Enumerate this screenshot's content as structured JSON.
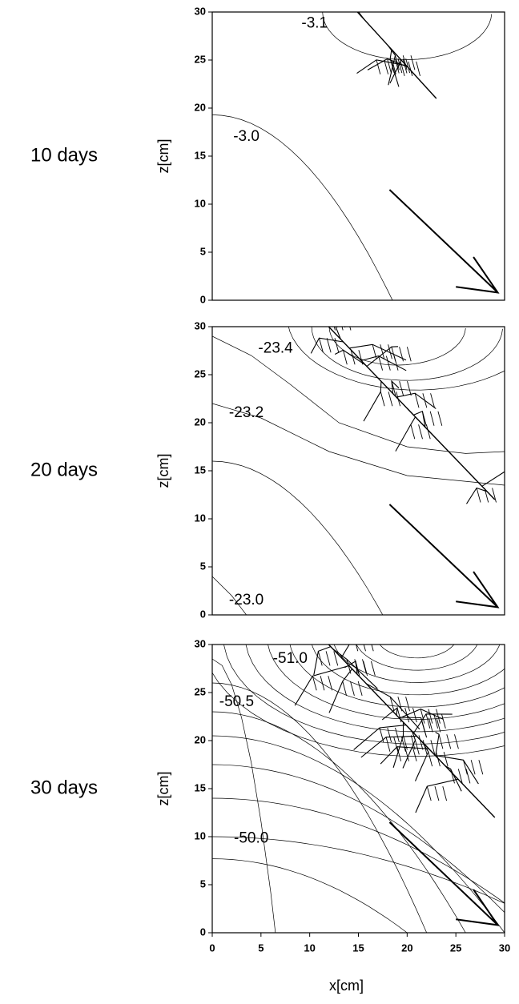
{
  "chart_data": [
    {
      "type": "contour",
      "title": "10 days",
      "ylabel": "z[cm]",
      "xlim": [
        0,
        30
      ],
      "ylim": [
        0,
        30
      ],
      "yticks": [
        0,
        5,
        10,
        15,
        20,
        25,
        30
      ],
      "contour_levels": [
        {
          "value": -3.1,
          "label": "-3.1"
        },
        {
          "value": -3,
          "label": "-3.0"
        }
      ]
    },
    {
      "type": "contour",
      "title": "20 days",
      "ylabel": "z[cm]",
      "xlim": [
        0,
        30
      ],
      "ylim": [
        0,
        30
      ],
      "yticks": [
        0,
        5,
        10,
        15,
        20,
        25,
        30
      ],
      "contour_levels": [
        {
          "value": -23.4,
          "label": "-23.4"
        },
        {
          "value": -23.2,
          "label": "-23.2"
        },
        {
          "value": -23,
          "label": "-23.0"
        }
      ]
    },
    {
      "type": "contour",
      "title": "30 days",
      "ylabel": "z[cm]",
      "xlabel": "x[cm]",
      "xlim": [
        0,
        30
      ],
      "ylim": [
        0,
        30
      ],
      "yticks": [
        0,
        5,
        10,
        15,
        20,
        25,
        30
      ],
      "xticks": [
        0,
        5,
        10,
        15,
        20,
        25,
        30
      ],
      "contour_levels": [
        {
          "value": -51,
          "label": "-51.0"
        },
        {
          "value": -50.5,
          "label": "-50.5"
        },
        {
          "value": -50,
          "label": "-50.0"
        }
      ]
    }
  ]
}
